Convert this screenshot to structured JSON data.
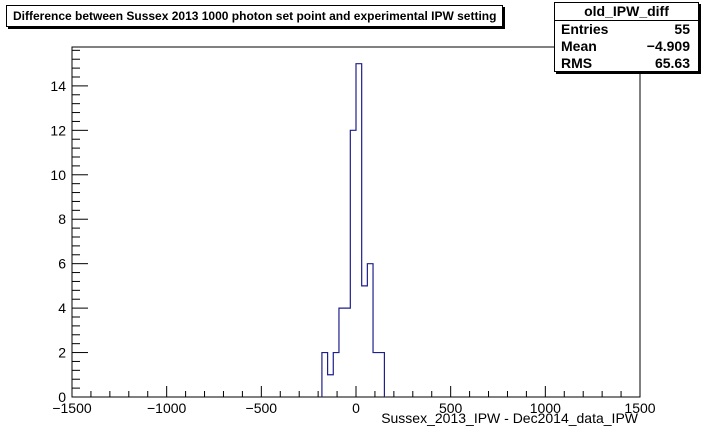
{
  "chart_data": {
    "type": "histogram",
    "title": "Difference between Sussex 2013 1000 photon set point and experimental IPW setting",
    "xlabel": "Sussex_2013_IPW - Dec2014_data_IPW",
    "ylabel": "",
    "xlim": [
      -1500,
      1500
    ],
    "ylim": [
      0,
      15.75
    ],
    "x_ticks": [
      -1500,
      -1000,
      -500,
      0,
      500,
      1000,
      1500
    ],
    "x_tick_labels": [
      "−1500",
      "−1000",
      "−500",
      "0",
      "500",
      "1000",
      "1500"
    ],
    "y_ticks": [
      0,
      2,
      4,
      6,
      8,
      10,
      12,
      14
    ],
    "y_tick_labels": [
      "0",
      "2",
      "4",
      "6",
      "8",
      "10",
      "12",
      "14"
    ],
    "bin_width": 30,
    "bins": [
      {
        "x0": -180,
        "value": 2
      },
      {
        "x0": -150,
        "value": 1
      },
      {
        "x0": -120,
        "value": 2
      },
      {
        "x0": -90,
        "value": 4
      },
      {
        "x0": -60,
        "value": 4
      },
      {
        "x0": -30,
        "value": 12
      },
      {
        "x0": 0,
        "value": 15
      },
      {
        "x0": 30,
        "value": 5
      },
      {
        "x0": 60,
        "value": 6
      },
      {
        "x0": 90,
        "value": 2
      },
      {
        "x0": 120,
        "value": 2
      }
    ],
    "line_color": "#1f1f8c",
    "grid": false
  },
  "stats": {
    "name": "old_IPW_diff",
    "entries_label": "Entries",
    "entries_value": "55",
    "mean_label": "Mean",
    "mean_value": "−4.909",
    "rms_label": "RMS",
    "rms_value": "65.63"
  }
}
